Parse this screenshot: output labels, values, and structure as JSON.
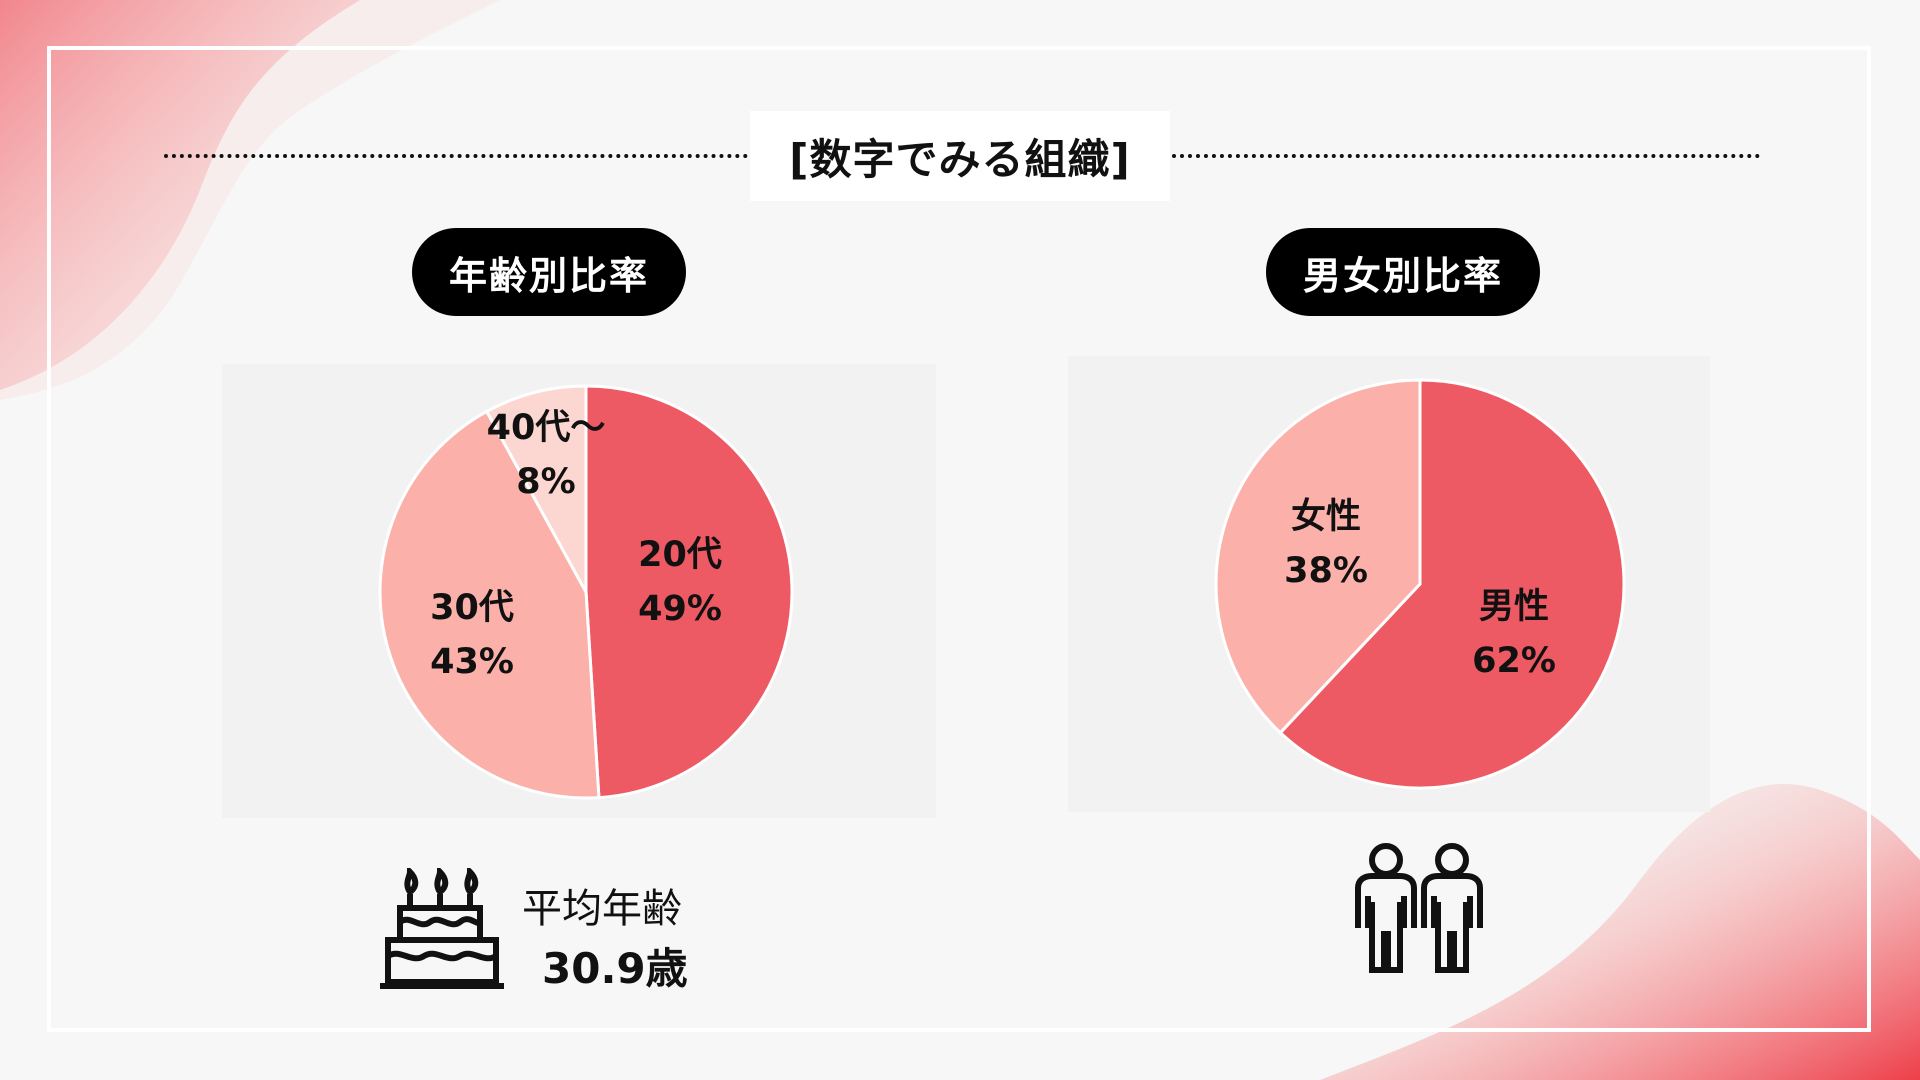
{
  "heading": "[数字でみる組織]",
  "age_section": {
    "pill": "年齢別比率",
    "average_label": "平均年齢",
    "average_value": "30.9歳",
    "icon": "birthday-cake-icon"
  },
  "gender_section": {
    "pill": "男女別比率",
    "icon": "two-people-icon"
  },
  "colors": {
    "accent": "#ee5a64",
    "mid": "#fbb1aa",
    "light": "#fcd6d0",
    "panel": "#f2f2f2",
    "pill_bg": "#000000"
  },
  "chart_data": [
    {
      "type": "pie",
      "title": "年齢別比率",
      "slices": [
        {
          "label": "20代",
          "value": 49,
          "value_label": "49%",
          "color": "#ee5a64"
        },
        {
          "label": "30代",
          "value": 43,
          "value_label": "43%",
          "color": "#fbb1aa"
        },
        {
          "label": "40代～",
          "value": 8,
          "value_label": "8%",
          "color": "#fcd6d0"
        }
      ]
    },
    {
      "type": "pie",
      "title": "男女別比率",
      "slices": [
        {
          "label": "男性",
          "value": 62,
          "value_label": "62%",
          "color": "#ee5a64"
        },
        {
          "label": "女性",
          "value": 38,
          "value_label": "38%",
          "color": "#fbb1aa"
        }
      ]
    }
  ]
}
